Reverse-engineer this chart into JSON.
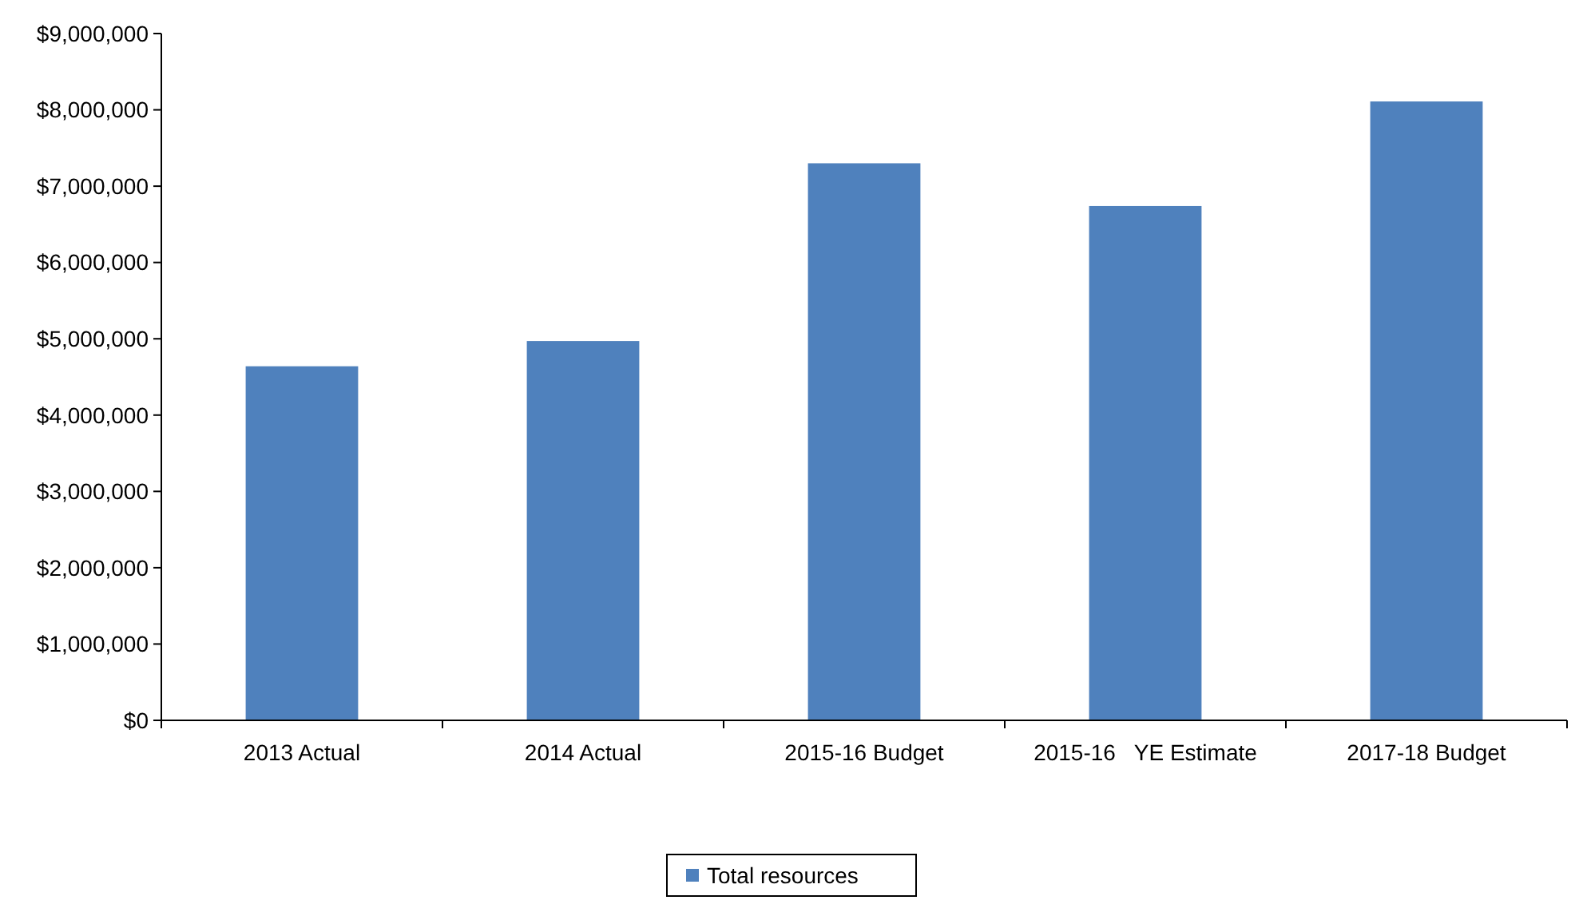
{
  "chart_data": {
    "type": "bar",
    "categories": [
      "2013 Actual",
      "2014 Actual",
      "2015-16 Budget",
      "2015-16   YE Estimate",
      "2017-18 Budget"
    ],
    "series": [
      {
        "name": "Total resources",
        "color": "#4f81bd",
        "values": [
          4640000,
          4970000,
          7300000,
          6740000,
          8110000
        ]
      }
    ],
    "ylim": [
      0,
      9000000
    ],
    "yticks": [
      {
        "value": 0,
        "label": "$0"
      },
      {
        "value": 1000000,
        "label": "$1,000,000"
      },
      {
        "value": 2000000,
        "label": "$2,000,000"
      },
      {
        "value": 3000000,
        "label": "$3,000,000"
      },
      {
        "value": 4000000,
        "label": "$4,000,000"
      },
      {
        "value": 5000000,
        "label": "$5,000,000"
      },
      {
        "value": 6000000,
        "label": "$6,000,000"
      },
      {
        "value": 7000000,
        "label": "$7,000,000"
      },
      {
        "value": 8000000,
        "label": "$8,000,000"
      },
      {
        "value": 9000000,
        "label": "$9,000,000"
      }
    ],
    "legend": "bottom"
  }
}
